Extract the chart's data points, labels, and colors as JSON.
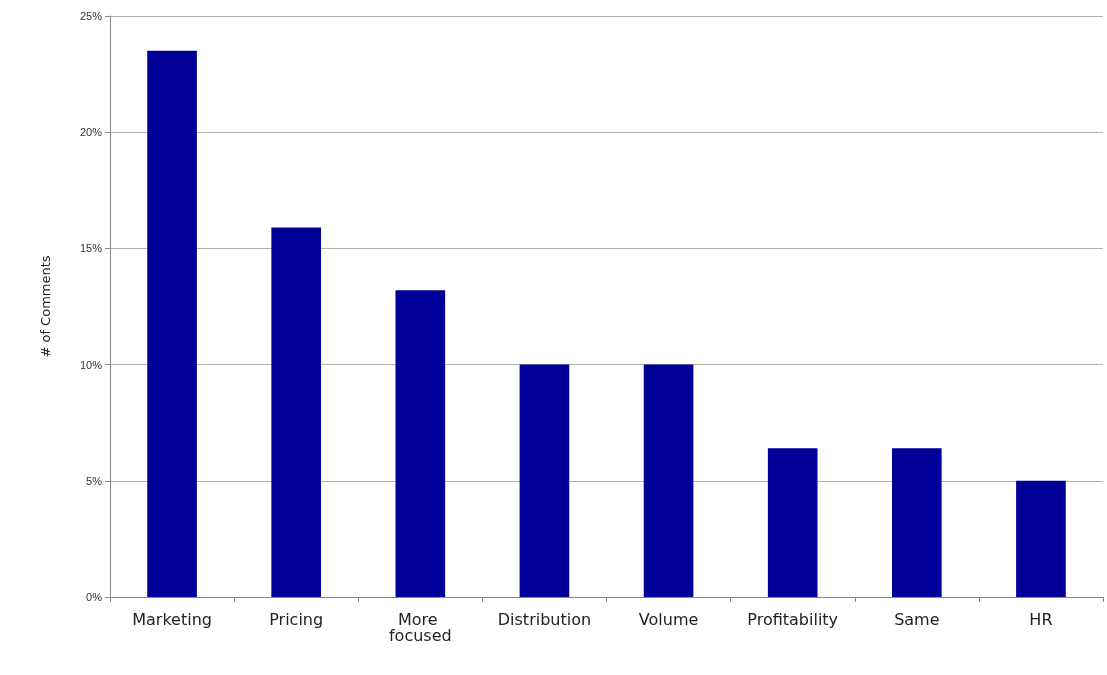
{
  "chart_data": {
    "type": "bar",
    "ylabel": "# of Comments",
    "categories": [
      "Marketing",
      "Pricing",
      "More focused",
      "Distribution",
      "Volume",
      "Profitability",
      "Same",
      "HR"
    ],
    "values": [
      23.5,
      15.9,
      13.2,
      10.0,
      10.0,
      6.4,
      6.4,
      5.0
    ],
    "color": "#000099",
    "ylim": [
      0,
      25
    ],
    "yticks": [
      {
        "value": 0,
        "label": "0%"
      },
      {
        "value": 5,
        "label": "5%"
      },
      {
        "value": 10,
        "label": "10%"
      },
      {
        "value": 15,
        "label": "15%"
      },
      {
        "value": 20,
        "label": "20%"
      },
      {
        "value": 25,
        "label": "25%"
      }
    ],
    "grid": "y"
  }
}
